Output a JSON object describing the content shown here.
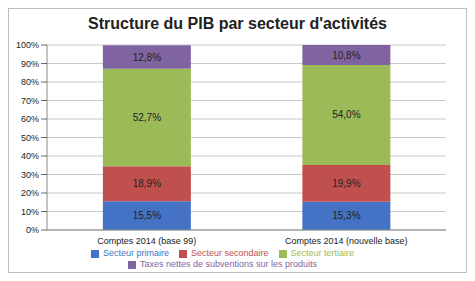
{
  "chart_data": {
    "type": "bar",
    "title": "Structure du PIB par secteur d'activités",
    "categories": [
      "Comptes 2014 (base 99)",
      "Comptes 2014 (nouvelle base)"
    ],
    "stacked": true,
    "data_labels": true,
    "grid": true,
    "legend": "bottom",
    "ylim": [
      0,
      100
    ],
    "yticks": [
      {
        "value": 0,
        "label": "0%"
      },
      {
        "value": 10,
        "label": "10%"
      },
      {
        "value": 20,
        "label": "20%"
      },
      {
        "value": 30,
        "label": "30%"
      },
      {
        "value": 40,
        "label": "40%"
      },
      {
        "value": 50,
        "label": "50%"
      },
      {
        "value": 60,
        "label": "60%"
      },
      {
        "value": 70,
        "label": "70%"
      },
      {
        "value": 80,
        "label": "80%"
      },
      {
        "value": 90,
        "label": "90%"
      },
      {
        "value": 100,
        "label": "100%"
      }
    ],
    "series": [
      {
        "name": "Secteur primaire",
        "color": "#4472c4",
        "values": [
          15.5,
          15.3
        ],
        "value_labels": [
          "15,5%",
          "15,3%"
        ]
      },
      {
        "name": "Secteur secondaire",
        "color": "#c0504d",
        "values": [
          18.9,
          19.9
        ],
        "value_labels": [
          "18,9%",
          "19,9%"
        ]
      },
      {
        "name": "Secteur tertiaire",
        "color": "#9bbb59",
        "values": [
          52.7,
          54.0
        ],
        "value_labels": [
          "52,7%",
          "54,0%"
        ]
      },
      {
        "name": "Taxes nettes de subventions sur les produits",
        "color": "#8064a2",
        "values": [
          12.8,
          10.8
        ],
        "value_labels": [
          "12,8%",
          "10,8%"
        ]
      }
    ]
  }
}
